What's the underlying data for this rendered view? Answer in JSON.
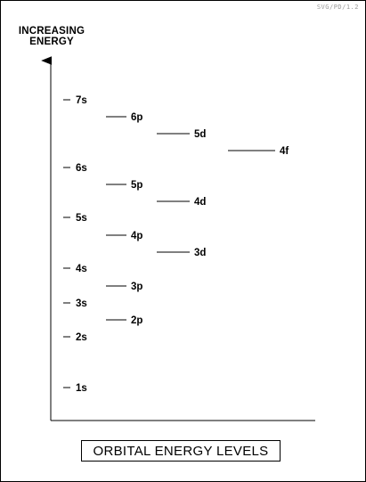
{
  "watermark": "SVG/PD/1.2",
  "axis": {
    "label_lines": [
      "INCREASING",
      "ENERGY"
    ]
  },
  "title": "ORBITAL ENERGY LEVELS",
  "energy_levels": [
    {
      "label": "1s",
      "column": "s",
      "rank": 1
    },
    {
      "label": "2s",
      "column": "s",
      "rank": 2
    },
    {
      "label": "2p",
      "column": "p",
      "rank": 3
    },
    {
      "label": "3s",
      "column": "s",
      "rank": 4
    },
    {
      "label": "3p",
      "column": "p",
      "rank": 5
    },
    {
      "label": "4s",
      "column": "s",
      "rank": 6
    },
    {
      "label": "3d",
      "column": "d",
      "rank": 7
    },
    {
      "label": "4p",
      "column": "p",
      "rank": 8
    },
    {
      "label": "5s",
      "column": "s",
      "rank": 9
    },
    {
      "label": "4d",
      "column": "d",
      "rank": 10
    },
    {
      "label": "5p",
      "column": "p",
      "rank": 11
    },
    {
      "label": "6s",
      "column": "s",
      "rank": 12
    },
    {
      "label": "4f",
      "column": "f",
      "rank": 13
    },
    {
      "label": "5d",
      "column": "d",
      "rank": 14
    },
    {
      "label": "6p",
      "column": "p",
      "rank": 15
    },
    {
      "label": "7s",
      "column": "s",
      "rank": 16
    }
  ]
}
